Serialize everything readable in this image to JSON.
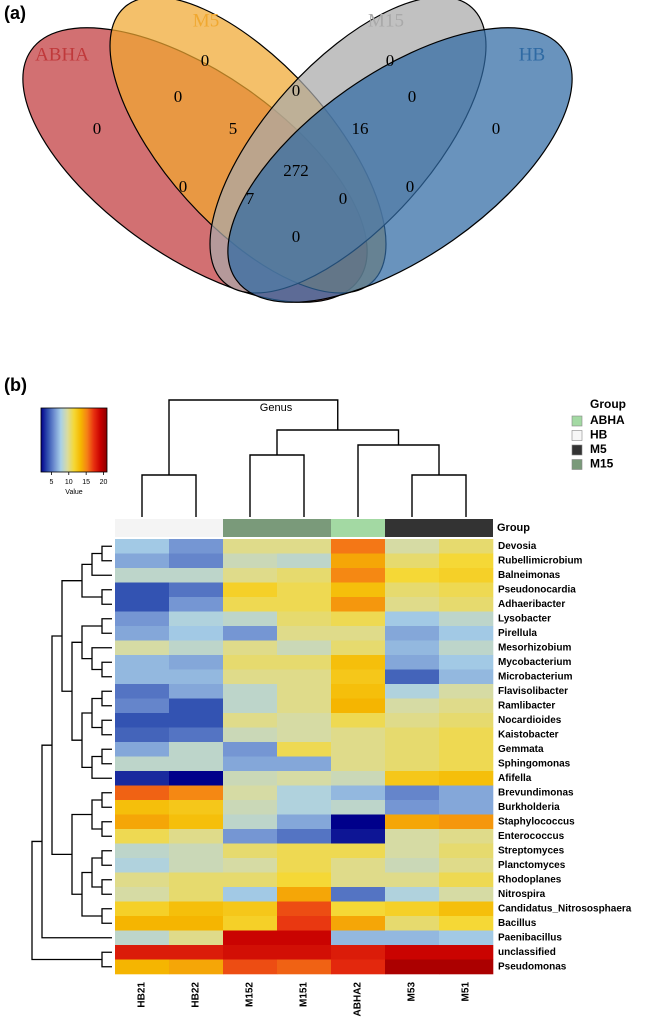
{
  "chart_data": [
    {
      "type": "venn",
      "panel_label": "(a)",
      "sets": [
        {
          "name": "ABHA",
          "color": "#c0393b"
        },
        {
          "name": "M5",
          "color": "#f0a830"
        },
        {
          "name": "M15",
          "color": "#a9a9a9"
        },
        {
          "name": "HB",
          "color": "#2f6aa3"
        }
      ],
      "regions": [
        0,
        0,
        0,
        0,
        0,
        0,
        0,
        5,
        16,
        0,
        272,
        0,
        7,
        0,
        0
      ]
    },
    {
      "type": "heatmap",
      "panel_label": "(b)",
      "title": "Genus",
      "group_bar_label": "Group",
      "legend_title": "Group",
      "groups": [
        {
          "name": "ABHA",
          "color": "#a3d9a3"
        },
        {
          "name": "HB",
          "color": "#f7f7f7"
        },
        {
          "name": "M5",
          "color": "#333333"
        },
        {
          "name": "M15",
          "color": "#7a9a7a"
        }
      ],
      "columns": [
        "HB21",
        "HB22",
        "M152",
        "M151",
        "ABHA2",
        "M53",
        "M51"
      ],
      "column_group_colors": [
        "#f4f4f4",
        "#f4f4f4",
        "#7a9a7a",
        "#7a9a7a",
        "#a3d9a3",
        "#333333",
        "#333333"
      ],
      "rows": [
        "Devosia",
        "Rubellimicrobium",
        "Balneimonas",
        "Pseudonocardia",
        "Adhaeribacter",
        "Lysobacter",
        "Pirellula",
        "Mesorhizobium",
        "Mycobacterium",
        "Microbacterium",
        "Flavisolibacter",
        "Ramlibacter",
        "Nocardioides",
        "Kaistobacter",
        "Gemmata",
        "Sphingomonas",
        "Afifella",
        "Brevundimonas",
        "Burkholderia",
        "Staphylococcus",
        "Enterococcus",
        "Streptomyces",
        "Planctomyces",
        "Rhodoplanes",
        "Nitrospira",
        "Candidatus_Nitrososphaera",
        "Bacillus",
        "Paenibacillus",
        "unclassified",
        "Pseudomonas"
      ],
      "values": [
        [
          7.5,
          6,
          10,
          10,
          15.5,
          9.5,
          10.5
        ],
        [
          6.5,
          5.5,
          9,
          8.5,
          14,
          10.5,
          11.5
        ],
        [
          8.5,
          8.5,
          10,
          10.5,
          15,
          11.5,
          12
        ],
        [
          4,
          5,
          12,
          11,
          13,
          10.5,
          11
        ],
        [
          4,
          6,
          11,
          11,
          14.5,
          10,
          10.5
        ],
        [
          6,
          8,
          8.5,
          10.5,
          11,
          7.5,
          8.5
        ],
        [
          6.5,
          7.5,
          6,
          10,
          10,
          6.5,
          7.5
        ],
        [
          9.5,
          8.5,
          10,
          9,
          10.5,
          7,
          8.5
        ],
        [
          7,
          6.5,
          10.5,
          10.5,
          13,
          6.5,
          7.5
        ],
        [
          7,
          7,
          10,
          10,
          12.5,
          4.5,
          7
        ],
        [
          5,
          6.5,
          8.5,
          10,
          13,
          8,
          9.5
        ],
        [
          5.5,
          4,
          8.5,
          10,
          13.5,
          9.5,
          10
        ],
        [
          4,
          4,
          10,
          9.5,
          11,
          10,
          10.5
        ],
        [
          4.5,
          5,
          9,
          9.5,
          10,
          10.5,
          11
        ],
        [
          6.5,
          8.5,
          6,
          11,
          10,
          10.5,
          11
        ],
        [
          8.5,
          8.5,
          6.5,
          6.5,
          10,
          10.5,
          11
        ],
        [
          3,
          2,
          9,
          9.5,
          9,
          12.5,
          13
        ],
        [
          16,
          15,
          9.5,
          8,
          7,
          5.5,
          6.5
        ],
        [
          13,
          12.5,
          9,
          8,
          8.5,
          6,
          6.5
        ],
        [
          14,
          13,
          8.5,
          6.5,
          2,
          14,
          14.5
        ],
        [
          11,
          10,
          6,
          5,
          2.5,
          9.5,
          10
        ],
        [
          8.5,
          9,
          10.5,
          11,
          11,
          9.5,
          10.5
        ],
        [
          8,
          9,
          9.5,
          11,
          10,
          9,
          10
        ],
        [
          10,
          10.5,
          10.5,
          11.5,
          10,
          10,
          11
        ],
        [
          9.5,
          10.5,
          7.5,
          14,
          5,
          8,
          9.5
        ],
        [
          12,
          13,
          12.5,
          16.5,
          11.5,
          12,
          13
        ],
        [
          13.5,
          13.5,
          12,
          17,
          14,
          10.5,
          11.5
        ],
        [
          8.5,
          10,
          19,
          19,
          7,
          7,
          7.5
        ],
        [
          18,
          18,
          18.5,
          18.5,
          18,
          19,
          19
        ],
        [
          13.5,
          14,
          16.5,
          16,
          17.5,
          20,
          20
        ]
      ],
      "colormap": [
        "#00008b",
        "#3050b0",
        "#6f8fd0",
        "#a8d0e8",
        "#d9dca0",
        "#f5d836",
        "#f5b800",
        "#f57f17",
        "#e83010",
        "#c80000",
        "#8b0000"
      ],
      "color_key": {
        "label": "Value",
        "lim": [
          2,
          21
        ],
        "ticks": [
          5,
          10,
          15,
          20
        ]
      }
    }
  ]
}
